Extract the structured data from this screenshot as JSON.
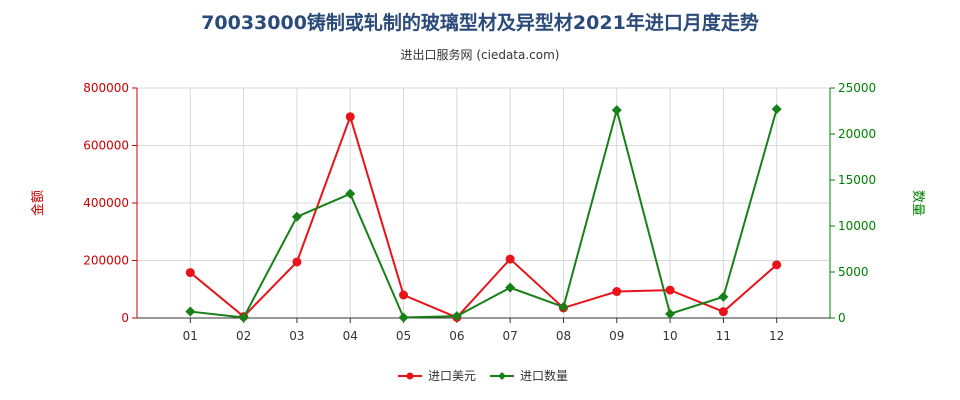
{
  "title": "70033000铸制或轧制的玻璃型材及异型材2021年进口月度走势",
  "subtitle": "进出口服务网 (ciedata.com)",
  "chart_data": {
    "type": "line",
    "categories": [
      "01",
      "02",
      "03",
      "04",
      "05",
      "06",
      "07",
      "08",
      "09",
      "10",
      "11",
      "12"
    ],
    "series": [
      {
        "name": "进口美元",
        "axis": "left",
        "color": "#e8141a",
        "marker": "circle",
        "values": [
          158000,
          5000,
          195000,
          700000,
          80000,
          2000,
          205000,
          35000,
          92000,
          97000,
          22000,
          185000
        ]
      },
      {
        "name": "进口数量",
        "axis": "right",
        "color": "#188018",
        "marker": "diamond",
        "values": [
          700,
          50,
          11000,
          13500,
          50,
          200,
          3300,
          1200,
          22600,
          450,
          2300,
          22700
        ]
      }
    ],
    "ylabel_left": "金额",
    "ylabel_right": "数量",
    "ylim_left": [
      0,
      800000
    ],
    "ylim_right": [
      0,
      25000
    ],
    "yticks_left": [
      "0",
      "200000",
      "400000",
      "600000",
      "800000"
    ],
    "yticks_right": [
      "0",
      "5000",
      "10000",
      "15000",
      "20000",
      "25000"
    ],
    "left_axis_color": "#cc0000",
    "right_axis_color": "#008000",
    "grid": true,
    "legend_position": "bottom-center"
  }
}
